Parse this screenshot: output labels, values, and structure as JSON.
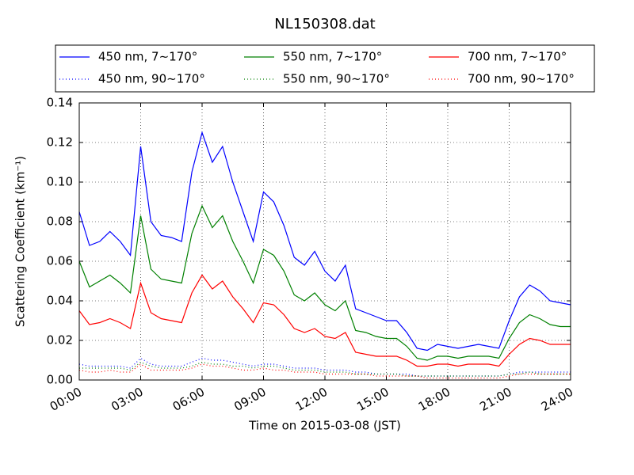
{
  "chart_data": {
    "type": "line",
    "title": "NL150308.dat",
    "x_label": "Time on 2015-03-08 (JST)",
    "y_label": "Scattering Coefficient (km⁻¹)",
    "x": [
      0,
      0.5,
      1,
      1.5,
      2,
      2.5,
      3,
      3.5,
      4,
      4.5,
      5,
      5.5,
      6,
      6.5,
      7,
      7.5,
      8,
      8.5,
      9,
      9.5,
      10,
      10.5,
      11,
      11.5,
      12,
      12.5,
      13,
      13.5,
      14,
      14.5,
      15,
      15.5,
      16,
      16.5,
      17,
      17.5,
      18,
      18.5,
      19,
      19.5,
      20,
      20.5,
      21,
      21.5,
      22,
      22.5,
      23,
      23.5,
      24
    ],
    "series": [
      {
        "name": "450 nm, 7∼170°",
        "color": "#0000ff",
        "style": "solid",
        "values": [
          0.085,
          0.068,
          0.07,
          0.075,
          0.07,
          0.063,
          0.118,
          0.08,
          0.073,
          0.072,
          0.07,
          0.105,
          0.125,
          0.11,
          0.118,
          0.1,
          0.085,
          0.07,
          0.095,
          0.09,
          0.078,
          0.062,
          0.058,
          0.065,
          0.055,
          0.05,
          0.058,
          0.036,
          0.034,
          0.032,
          0.03,
          0.03,
          0.024,
          0.016,
          0.015,
          0.018,
          0.017,
          0.016,
          0.017,
          0.018,
          0.017,
          0.016,
          0.03,
          0.042,
          0.048,
          0.045,
          0.04,
          0.039,
          0.038
        ]
      },
      {
        "name": "450 nm, 90∼170°",
        "color": "#0000ff",
        "style": "dotted",
        "values": [
          0.008,
          0.007,
          0.007,
          0.007,
          0.007,
          0.006,
          0.011,
          0.008,
          0.007,
          0.007,
          0.007,
          0.009,
          0.011,
          0.01,
          0.01,
          0.009,
          0.008,
          0.007,
          0.008,
          0.008,
          0.007,
          0.006,
          0.006,
          0.006,
          0.005,
          0.005,
          0.005,
          0.004,
          0.004,
          0.003,
          0.003,
          0.003,
          0.003,
          0.002,
          0.002,
          0.002,
          0.002,
          0.002,
          0.002,
          0.002,
          0.002,
          0.002,
          0.003,
          0.004,
          0.004,
          0.004,
          0.004,
          0.004,
          0.004
        ]
      },
      {
        "name": "550 nm, 7∼170°",
        "color": "#008000",
        "style": "solid",
        "values": [
          0.06,
          0.047,
          0.05,
          0.053,
          0.049,
          0.044,
          0.083,
          0.056,
          0.051,
          0.05,
          0.049,
          0.074,
          0.088,
          0.077,
          0.083,
          0.07,
          0.06,
          0.049,
          0.066,
          0.063,
          0.055,
          0.043,
          0.04,
          0.044,
          0.038,
          0.035,
          0.04,
          0.025,
          0.024,
          0.022,
          0.021,
          0.021,
          0.017,
          0.011,
          0.01,
          0.012,
          0.012,
          0.011,
          0.012,
          0.012,
          0.012,
          0.011,
          0.021,
          0.029,
          0.033,
          0.031,
          0.028,
          0.027,
          0.027
        ]
      },
      {
        "name": "550 nm, 90∼170°",
        "color": "#008000",
        "style": "dotted",
        "values": [
          0.006,
          0.006,
          0.006,
          0.006,
          0.006,
          0.005,
          0.009,
          0.007,
          0.006,
          0.006,
          0.006,
          0.007,
          0.009,
          0.008,
          0.008,
          0.007,
          0.007,
          0.006,
          0.007,
          0.007,
          0.006,
          0.005,
          0.005,
          0.005,
          0.004,
          0.004,
          0.004,
          0.003,
          0.003,
          0.003,
          0.003,
          0.003,
          0.002,
          0.002,
          0.002,
          0.002,
          0.002,
          0.002,
          0.002,
          0.002,
          0.002,
          0.002,
          0.003,
          0.003,
          0.004,
          0.003,
          0.003,
          0.003,
          0.003
        ]
      },
      {
        "name": "700 nm, 7∼170°",
        "color": "#ff0000",
        "style": "solid",
        "values": [
          0.035,
          0.028,
          0.029,
          0.031,
          0.029,
          0.026,
          0.049,
          0.034,
          0.031,
          0.03,
          0.029,
          0.044,
          0.053,
          0.046,
          0.05,
          0.042,
          0.036,
          0.029,
          0.039,
          0.038,
          0.033,
          0.026,
          0.024,
          0.026,
          0.022,
          0.021,
          0.024,
          0.014,
          0.013,
          0.012,
          0.012,
          0.012,
          0.01,
          0.007,
          0.007,
          0.008,
          0.008,
          0.007,
          0.008,
          0.008,
          0.008,
          0.007,
          0.013,
          0.018,
          0.021,
          0.02,
          0.018,
          0.018,
          0.018
        ]
      },
      {
        "name": "700 nm, 90∼170°",
        "color": "#ff0000",
        "style": "dotted",
        "values": [
          0.005,
          0.004,
          0.004,
          0.005,
          0.004,
          0.004,
          0.008,
          0.005,
          0.005,
          0.005,
          0.005,
          0.006,
          0.008,
          0.007,
          0.007,
          0.006,
          0.005,
          0.005,
          0.006,
          0.005,
          0.005,
          0.004,
          0.004,
          0.004,
          0.003,
          0.003,
          0.003,
          0.003,
          0.003,
          0.002,
          0.002,
          0.002,
          0.002,
          0.002,
          0.001,
          0.001,
          0.001,
          0.001,
          0.001,
          0.001,
          0.001,
          0.001,
          0.002,
          0.003,
          0.003,
          0.003,
          0.003,
          0.003,
          0.003
        ]
      }
    ],
    "xlim": [
      0,
      24
    ],
    "xticks": [
      {
        "value": 0,
        "label": "00:00"
      },
      {
        "value": 3,
        "label": "03:00"
      },
      {
        "value": 6,
        "label": "06:00"
      },
      {
        "value": 9,
        "label": "09:00"
      },
      {
        "value": 12,
        "label": "12:00"
      },
      {
        "value": 15,
        "label": "15:00"
      },
      {
        "value": 18,
        "label": "18:00"
      },
      {
        "value": 21,
        "label": "21:00"
      },
      {
        "value": 24,
        "label": "24:00"
      }
    ],
    "ylim": [
      0,
      0.14
    ],
    "yticks": [
      {
        "value": 0,
        "label": "0.00"
      },
      {
        "value": 0.02,
        "label": "0.02"
      },
      {
        "value": 0.04,
        "label": "0.04"
      },
      {
        "value": 0.06,
        "label": "0.06"
      },
      {
        "value": 0.08,
        "label": "0.08"
      },
      {
        "value": 0.1,
        "label": "0.10"
      },
      {
        "value": 0.12,
        "label": "0.12"
      },
      {
        "value": 0.14,
        "label": "0.14"
      }
    ],
    "grid": true,
    "legend": "top"
  }
}
